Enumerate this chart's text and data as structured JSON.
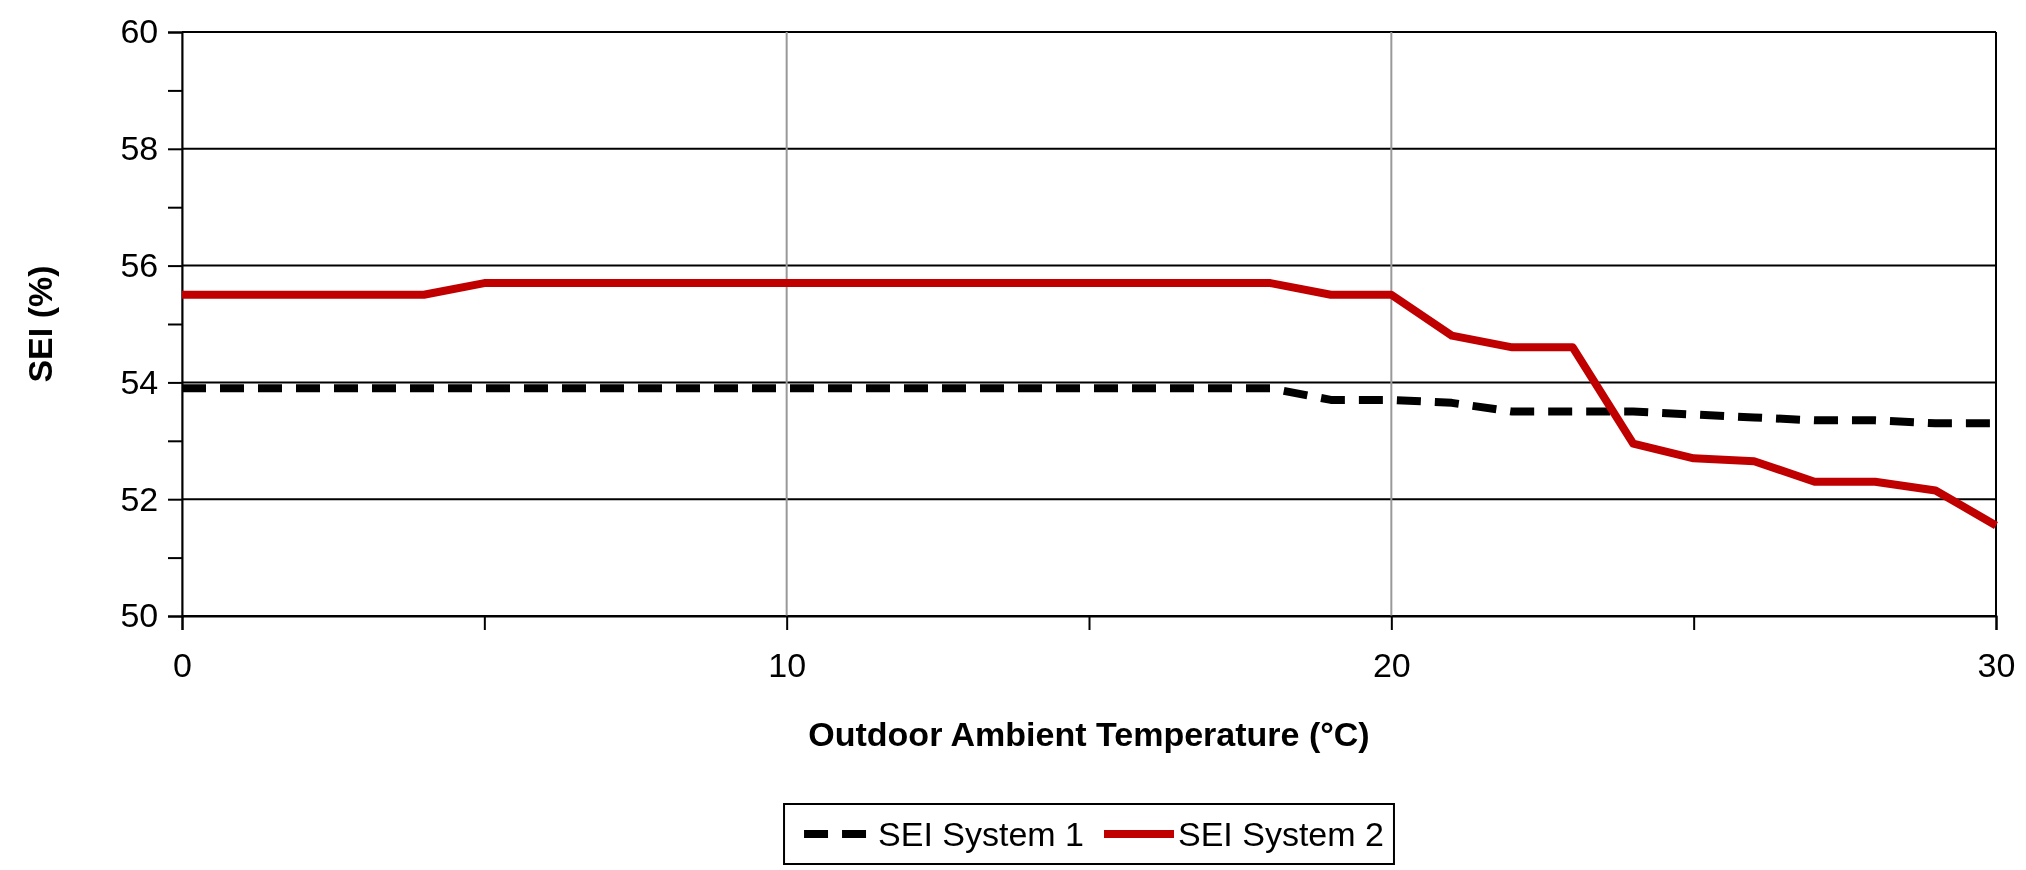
{
  "chart_data": {
    "type": "line",
    "xlabel": "Outdoor Ambient Temperature (°C)",
    "ylabel": "SEI (%)",
    "x": [
      0,
      1,
      2,
      3,
      4,
      5,
      6,
      7,
      8,
      9,
      10,
      11,
      12,
      13,
      14,
      15,
      16,
      17,
      18,
      19,
      20,
      21,
      22,
      23,
      24,
      25,
      26,
      27,
      28,
      29,
      30
    ],
    "series": [
      {
        "name": "SEI System 1",
        "color": "#000000",
        "line_style": "dashed",
        "values": [
          53.9,
          53.9,
          53.9,
          53.9,
          53.9,
          53.9,
          53.9,
          53.9,
          53.9,
          53.9,
          53.9,
          53.9,
          53.9,
          53.9,
          53.9,
          53.9,
          53.9,
          53.9,
          53.9,
          53.7,
          53.7,
          53.65,
          53.5,
          53.5,
          53.5,
          53.45,
          53.4,
          53.35,
          53.35,
          53.3,
          53.3
        ]
      },
      {
        "name": "SEI System 2",
        "color": "#c00000",
        "line_style": "solid",
        "values": [
          55.5,
          55.5,
          55.5,
          55.5,
          55.5,
          55.7,
          55.7,
          55.7,
          55.7,
          55.7,
          55.7,
          55.7,
          55.7,
          55.7,
          55.7,
          55.7,
          55.7,
          55.7,
          55.7,
          55.5,
          55.5,
          54.8,
          54.6,
          54.6,
          52.95,
          52.7,
          52.65,
          52.3,
          52.3,
          52.15,
          51.55
        ]
      }
    ],
    "xlim": [
      0,
      30
    ],
    "xticks": [
      0,
      {
        "value": 5,
        "label": null
      },
      10,
      {
        "value": 15,
        "label": null
      },
      20,
      {
        "value": 25,
        "label": null
      },
      30
    ],
    "ylim": [
      50,
      60
    ],
    "yticks": [
      50,
      {
        "value": 51,
        "label": null
      },
      52,
      {
        "value": 53,
        "label": null
      },
      54,
      {
        "value": 55,
        "label": null
      },
      56,
      {
        "value": 57,
        "label": null
      },
      58,
      {
        "value": 59,
        "label": null
      },
      60
    ],
    "grid": true,
    "legend": "bottom",
    "marker": "none"
  }
}
